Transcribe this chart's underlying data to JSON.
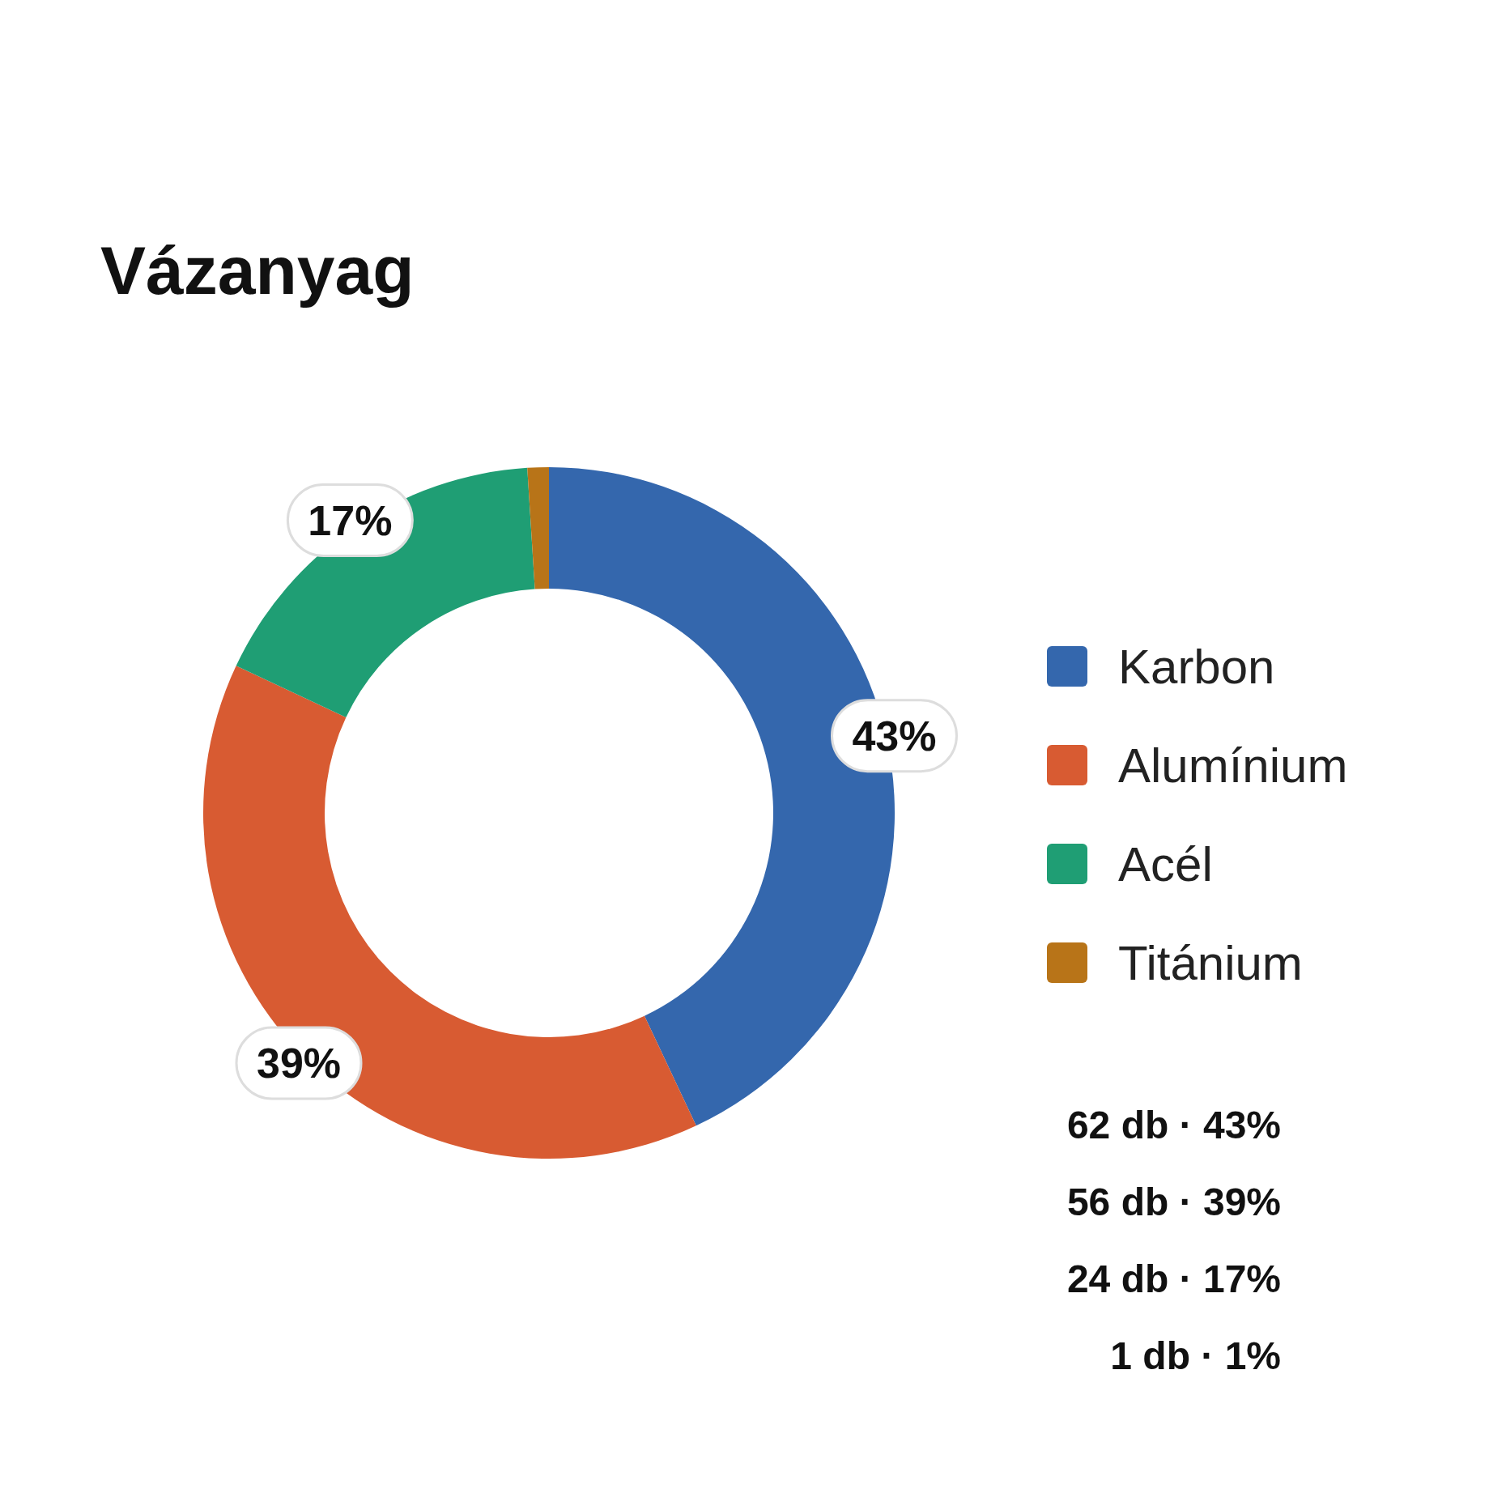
{
  "chart_data": {
    "type": "donut",
    "title": "Vázanyag",
    "categories": [
      "Karbon",
      "Alumínium",
      "Acél",
      "Titánium"
    ],
    "values": [
      43,
      39,
      17,
      1
    ],
    "colors": [
      "#3467ad",
      "#d85b32",
      "#1f9e74",
      "#b87418"
    ],
    "value_labels": [
      "43%",
      "39%",
      "17%",
      null
    ],
    "legend": "right",
    "annotations": [
      "62 db · 43%",
      "56 db · 39%",
      "24 db · 17%",
      "1 db · 1%"
    ]
  }
}
